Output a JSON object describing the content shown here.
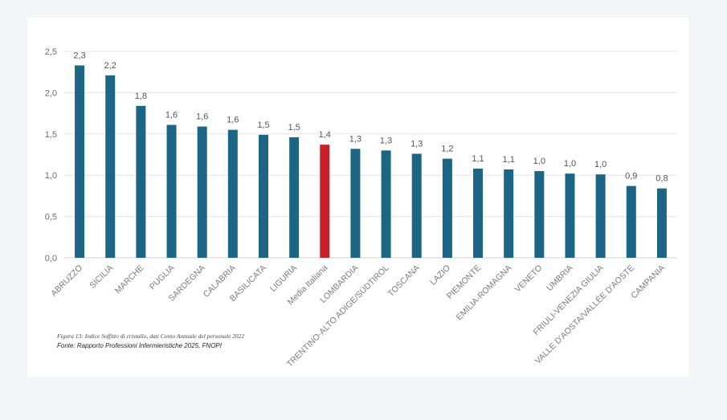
{
  "colors": {
    "page_bg": "#f4f5f9",
    "card_bg": "#ffffff",
    "bar": "#1d6584",
    "highlight_bar": "#c8202a",
    "grid": "#e3e3e3",
    "text": "#6d6d6d"
  },
  "figure_caption": "Figura 13: Indice Soffitto di cristallo, dati Conto Annuale del personale 2022",
  "source_note": "Fonte: Rapporto Professioni Infermieristiche 2025, FNOPI",
  "chart_data": {
    "type": "bar",
    "title": "",
    "xlabel": "",
    "ylabel": "",
    "ylim": [
      0,
      2.5
    ],
    "yticks": [
      0,
      0.5,
      1.0,
      1.5,
      2.0,
      2.5
    ],
    "ytick_labels": [
      "0,0",
      "0,5",
      "1,0",
      "1,5",
      "2,0",
      "2,5"
    ],
    "grid": true,
    "highlight_category": "Media Italiana",
    "categories": [
      "ABRUZZO",
      "SICILIA",
      "MARCHE",
      "PUGLIA",
      "SARDEGNA",
      "CALABRIA",
      "BASILICATA",
      "LIGURIA",
      "Media Italiana",
      "LOMBARDIA",
      "TRENTINO-ALTO ADIGE/SÜDTIROL",
      "TOSCANA",
      "LAZIO",
      "PIEMONTE",
      "EMILIA-ROMAGNA",
      "VENETO",
      "UMBRIA",
      "FRIULI-VENEZIA GIULIA",
      "VALLE D'AOSTA/VALLÉE D'AOSTE",
      "CAMPANIA"
    ],
    "values": [
      2.33,
      2.21,
      1.84,
      1.61,
      1.59,
      1.55,
      1.49,
      1.46,
      1.37,
      1.32,
      1.3,
      1.26,
      1.2,
      1.08,
      1.07,
      1.05,
      1.02,
      1.01,
      0.87,
      0.84
    ],
    "value_labels": [
      "2,3",
      "2,2",
      "1,8",
      "1,6",
      "1,6",
      "1,6",
      "1,5",
      "1,5",
      "1,4",
      "1,3",
      "1,3",
      "1,3",
      "1,2",
      "1,1",
      "1,1",
      "1,0",
      "1,0",
      "1,0",
      "0,9",
      "0,8"
    ]
  }
}
